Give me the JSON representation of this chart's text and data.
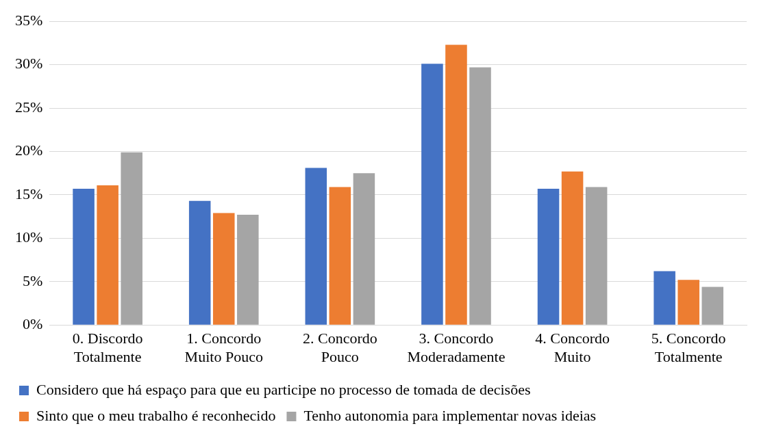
{
  "chart_data": {
    "type": "bar",
    "categories": [
      "0. Discordo Totalmente",
      "1. Concordo Muito Pouco",
      "2. Concordo Pouco",
      "3. Concordo Moderadamente",
      "4. Concordo Muito",
      "5. Concordo Totalmente"
    ],
    "series": [
      {
        "name": "Considero que há espaço para que eu participe no processo de tomada de decisões",
        "color": "#4472c4",
        "values": [
          15.7,
          14.3,
          18.1,
          30.1,
          15.7,
          6.2
        ]
      },
      {
        "name": "Sinto que o meu trabalho é reconhecido",
        "color": "#ed7d31",
        "values": [
          16.1,
          12.9,
          15.9,
          32.3,
          17.7,
          5.2
        ]
      },
      {
        "name": "Tenho autonomia para implementar novas ideias",
        "color": "#a5a5a5",
        "values": [
          19.9,
          12.7,
          17.5,
          29.7,
          15.9,
          4.4
        ]
      }
    ],
    "ylim": [
      0,
      35
    ],
    "yticks": [
      {
        "value": 0,
        "label": "0%"
      },
      {
        "value": 5,
        "label": "5%"
      },
      {
        "value": 10,
        "label": "10%"
      },
      {
        "value": 15,
        "label": "15%"
      },
      {
        "value": 20,
        "label": "20%"
      },
      {
        "value": 25,
        "label": "25%"
      },
      {
        "value": 30,
        "label": "30%"
      },
      {
        "value": 35,
        "label": "35%"
      }
    ],
    "grid": "y",
    "legend": "bottom"
  }
}
